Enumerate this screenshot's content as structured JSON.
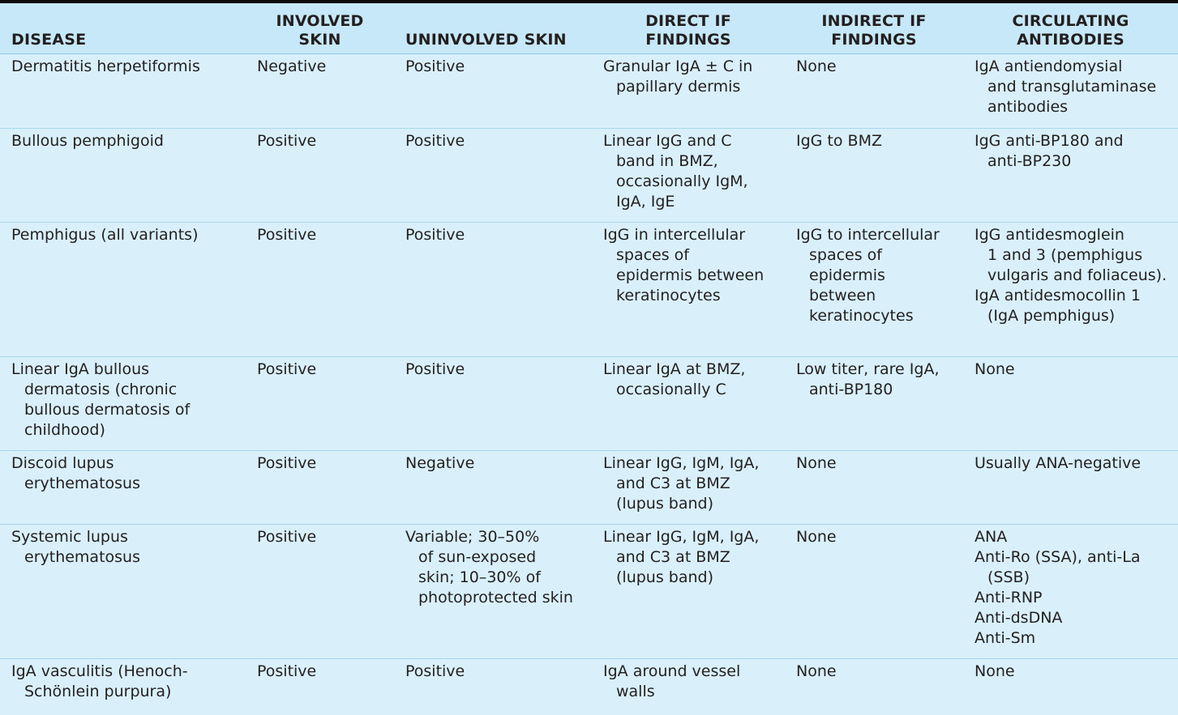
{
  "headers": [
    "DISEASE",
    "INVOLVED SKIN",
    "UNINVOLVED SKIN",
    "DIRECT IF FINDINGS",
    "INDIRECT IF FINDINGS",
    "CIRCULATING ANTIBODIES"
  ],
  "header_lines": [
    [
      "DISEASE"
    ],
    [
      "INVOLVED",
      "SKIN"
    ],
    [
      "UNINVOLVED SKIN"
    ],
    [
      "DIRECT IF",
      "FINDINGS"
    ],
    [
      "INDIRECT IF",
      "FINDINGS"
    ],
    [
      "CIRCULATING",
      "ANTIBODIES"
    ]
  ],
  "rows": [
    {
      "height": 92,
      "cells": [
        [
          "Dermatitis herpetiformis"
        ],
        [
          "Negative"
        ],
        [
          "Positive"
        ],
        [
          "Granular IgA ± C in",
          "papillary dermis"
        ],
        [
          "None"
        ],
        [
          "IgA antiendomysial",
          "and transglutaminase",
          "antibodies"
        ]
      ]
    },
    {
      "height": 116,
      "cells": [
        [
          "Bullous pemphigoid"
        ],
        [
          "Positive"
        ],
        [
          "Positive"
        ],
        [
          "Linear IgG and C",
          "band in BMZ,",
          "occasionally IgM,",
          "IgA, IgE"
        ],
        [
          "IgG to BMZ"
        ],
        [
          "IgG anti-BP180 and",
          "anti-BP230"
        ]
      ]
    },
    {
      "height": 166,
      "cells": [
        [
          "Pemphigus (all variants)"
        ],
        [
          "Positive"
        ],
        [
          "Positive"
        ],
        [
          "IgG in intercellular",
          "spaces of",
          "epidermis between",
          "keratinocytes"
        ],
        [
          "IgG to intercellular",
          "spaces of",
          "epidermis",
          "between",
          "keratinocytes"
        ],
        [
          "IgG antidesmoglein",
          "1 and 3 (pemphigus",
          "vulgaris and foliaceus).",
          "IgA antidesmocollin 1",
          "(IgA pemphigus)"
        ]
      ]
    },
    {
      "height": 116,
      "cells": [
        [
          "Linear IgA bullous",
          "dermatosis (chronic",
          "bullous dermatosis of",
          "childhood)"
        ],
        [
          "Positive"
        ],
        [
          "Positive"
        ],
        [
          "Linear IgA at BMZ,",
          "occasionally C"
        ],
        [
          "Low titer, rare IgA,",
          "anti-BP180"
        ],
        [
          "None"
        ]
      ]
    },
    {
      "height": 91,
      "cells": [
        [
          "Discoid lupus",
          "erythematosus"
        ],
        [
          "Positive"
        ],
        [
          "Negative"
        ],
        [
          "Linear IgG, IgM, IgA,",
          "and C3 at BMZ",
          "(lupus band)"
        ],
        [
          "None"
        ],
        [
          "Usually ANA-negative"
        ]
      ]
    },
    {
      "height": 166,
      "cells": [
        [
          "Systemic lupus",
          "erythematosus"
        ],
        [
          "Positive"
        ],
        [
          "Variable; 30–50%",
          "of sun-exposed",
          "skin; 10–30% of",
          "photoprotected skin"
        ],
        [
          "Linear IgG, IgM, IgA,",
          "and C3 at BMZ",
          "(lupus band)"
        ],
        [
          "None"
        ],
        [
          "ANA",
          "Anti-Ro (SSA), anti-La",
          "(SSB)",
          "Anti-RNP",
          "Anti-dsDNA",
          "Anti-Sm"
        ]
      ]
    },
    {
      "height": 70,
      "cells": [
        [
          "IgA vasculitis (Henoch-",
          "Schönlein purpura)"
        ],
        [
          "Positive"
        ],
        [
          "Positive"
        ],
        [
          "IgA around vessel",
          "walls"
        ],
        [
          "None"
        ],
        [
          "None"
        ]
      ]
    }
  ],
  "indent_rules": {
    "comment": "continuation lines indented except standalone list entries",
    "no_indent": {
      "5": {
        "5": [
          0,
          1,
          3,
          4,
          5
        ]
      },
      "2": {
        "5": [
          0,
          3
        ]
      }
    }
  }
}
